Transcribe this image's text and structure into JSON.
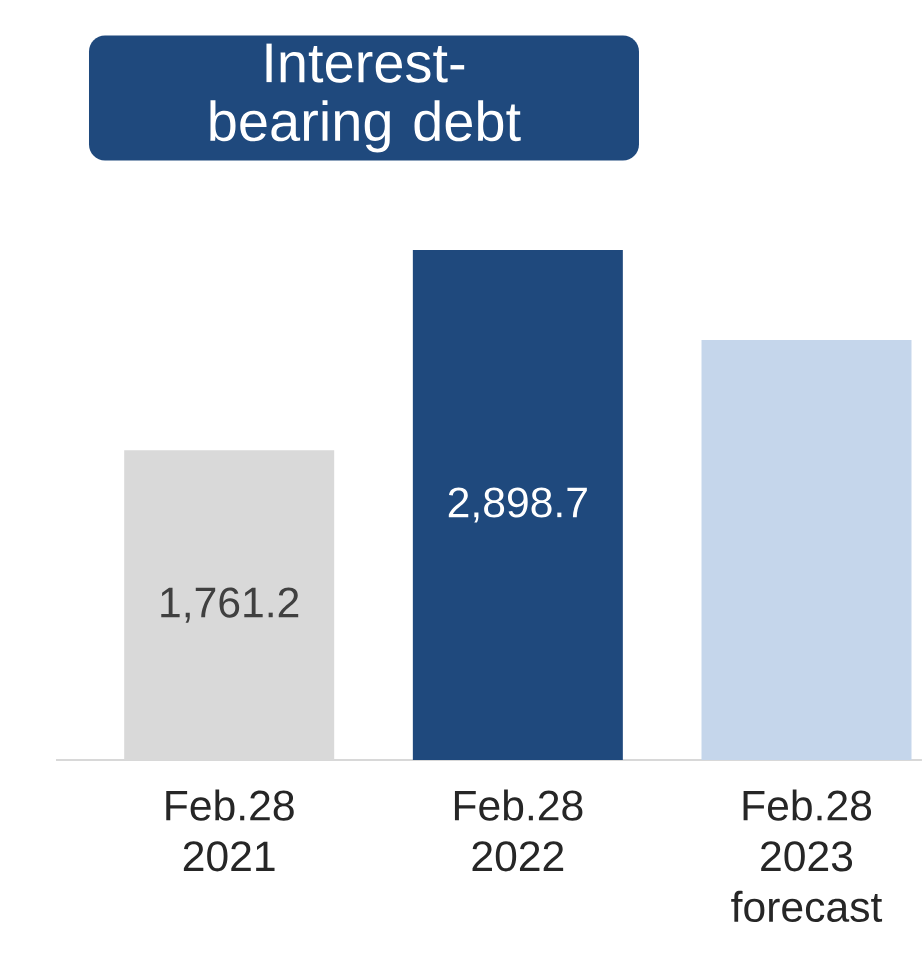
{
  "chart_data": {
    "type": "bar",
    "title": "Interest-bearing debt",
    "categories": [
      "Feb.28 2021",
      "Feb.28 2022",
      "Feb.28 2023 forecast"
    ],
    "values": [
      1761.2,
      2898.7,
      2387
    ],
    "colors": [
      "#d9d9d9",
      "#1f497d",
      "#c5d6eb"
    ],
    "value_labels": [
      "1,761.2",
      "2,898.7",
      null
    ],
    "legend": false,
    "grid": false
  }
}
